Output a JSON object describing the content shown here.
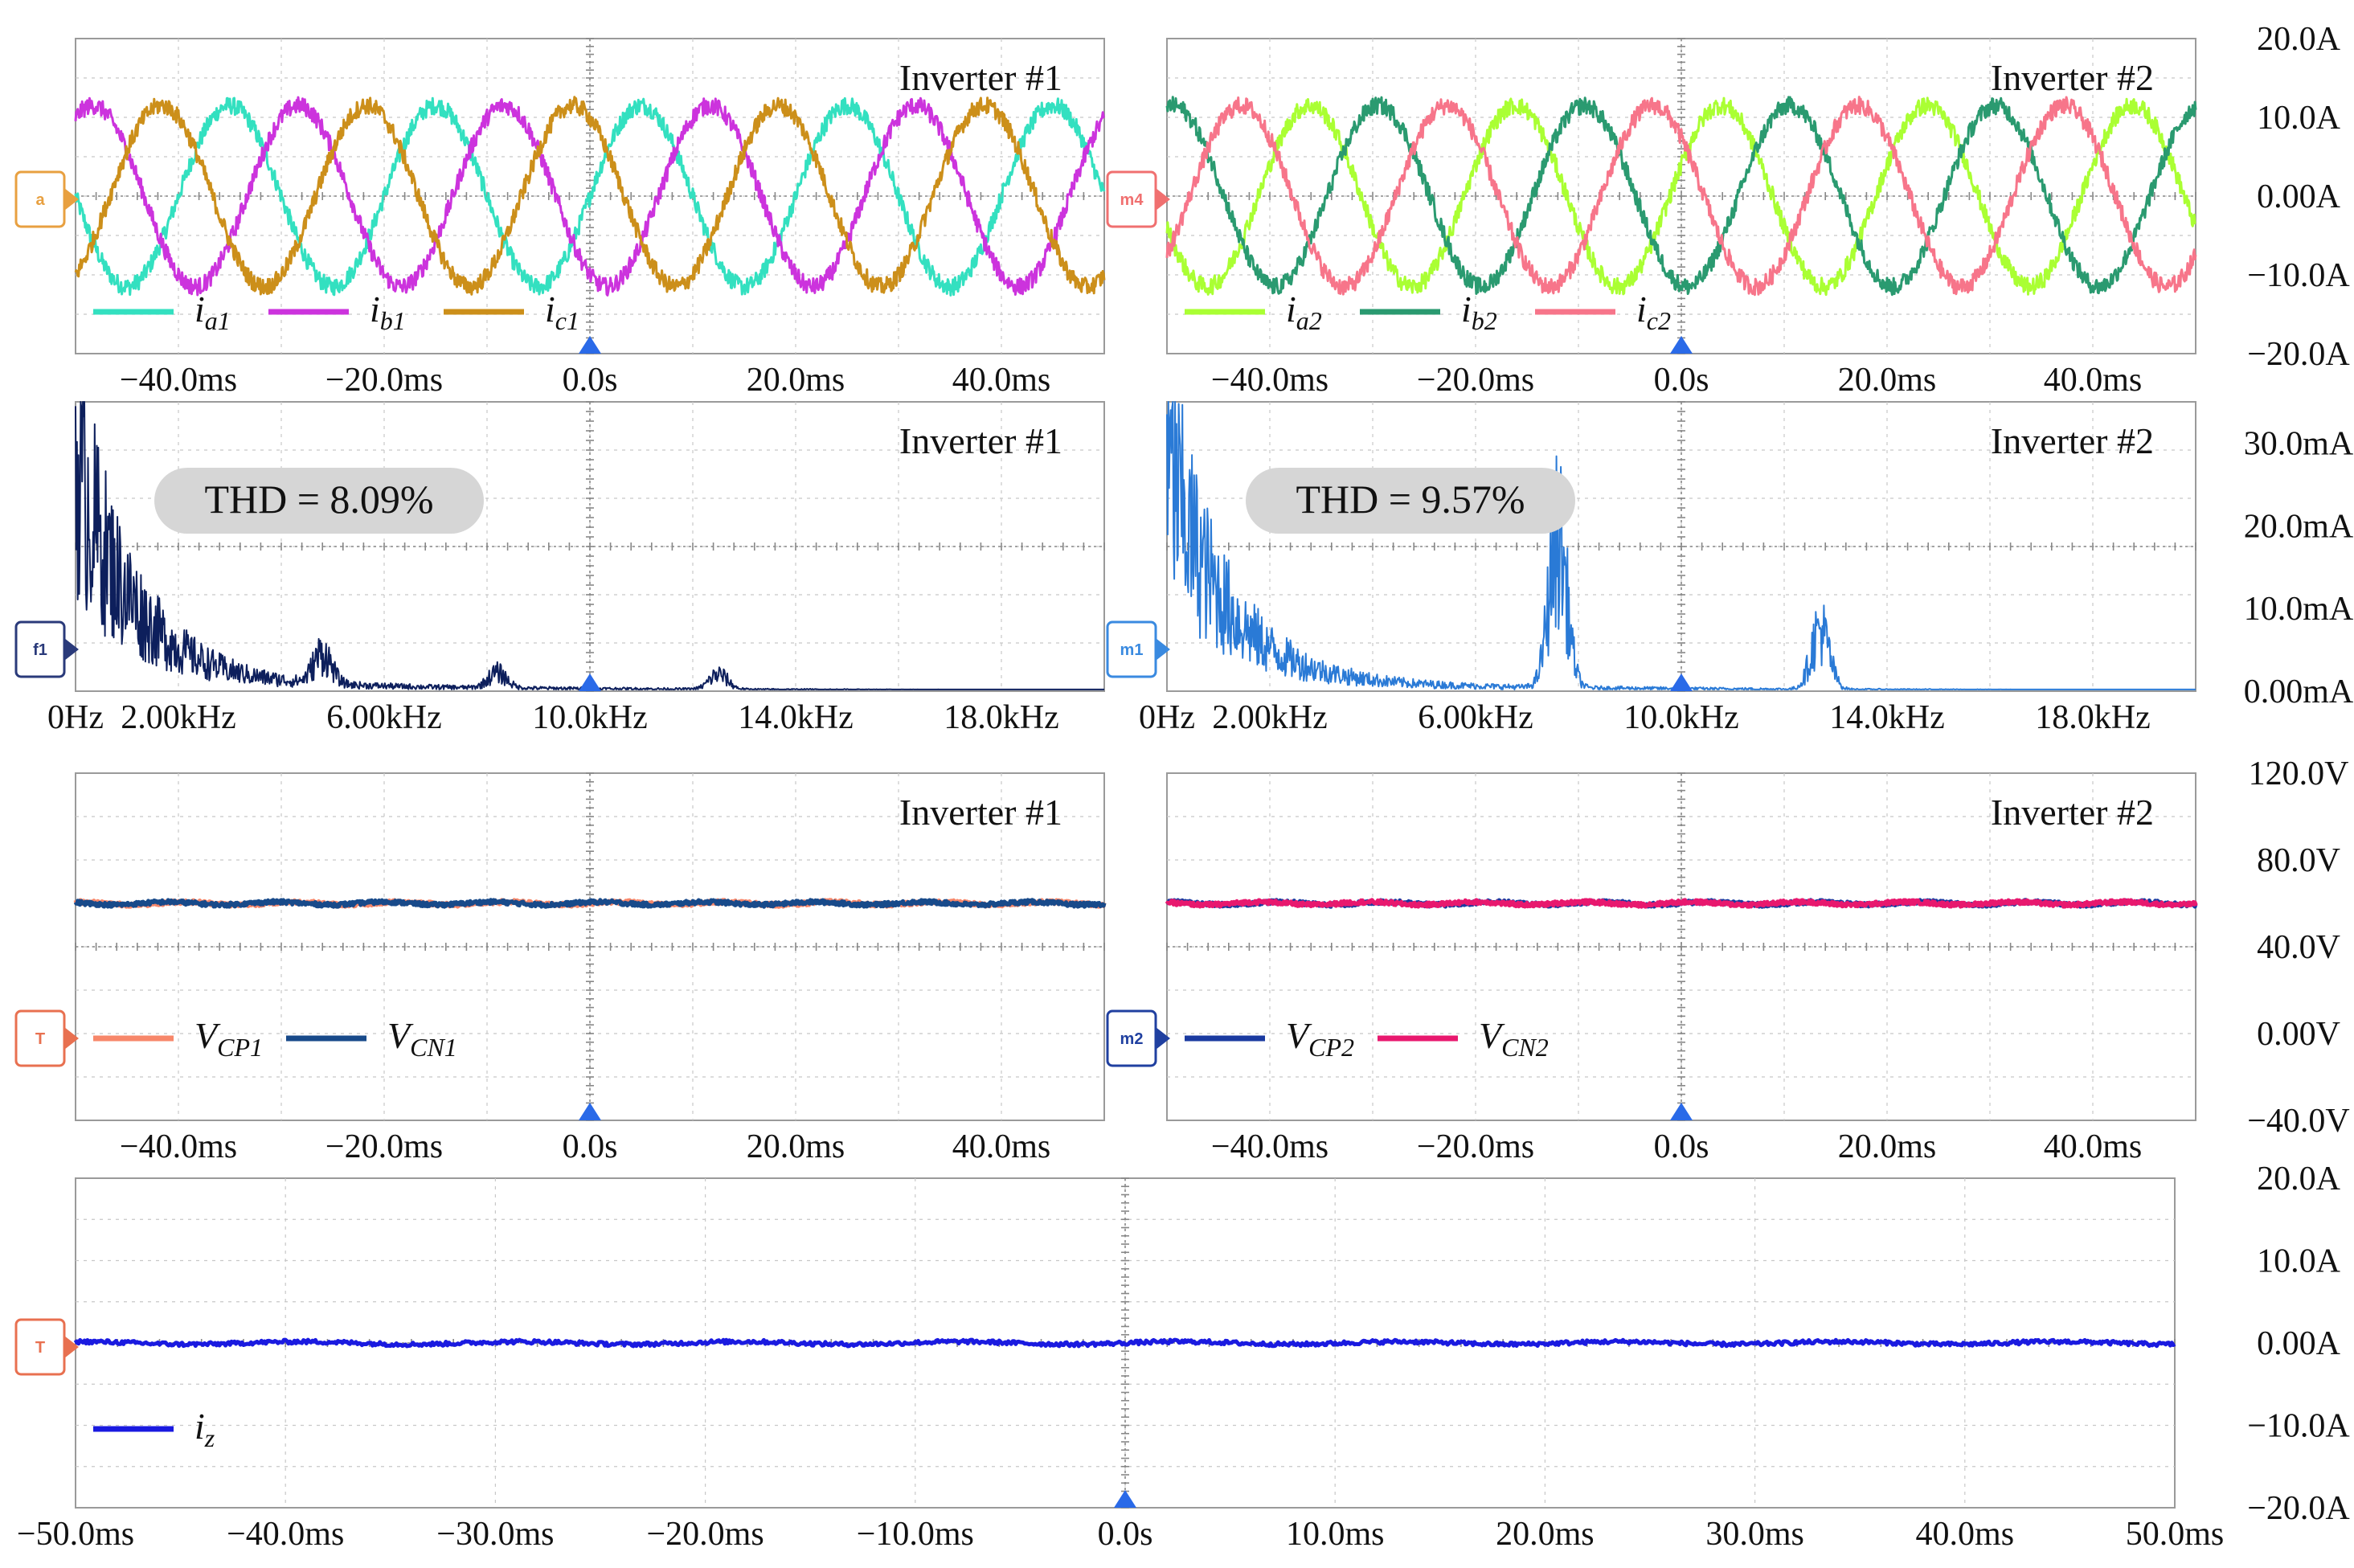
{
  "chart_data": [
    {
      "id": "p1",
      "type": "line",
      "title": "Inverter #1",
      "x_ticks": [
        "−40.0ms",
        "−20.0ms",
        "0.0s",
        "20.0ms",
        "40.0ms"
      ],
      "y_ticks": [],
      "xlim": [
        -50,
        50
      ],
      "ylim": [
        -20,
        20
      ],
      "marker": "a",
      "series": [
        {
          "name": "i",
          "sub": "a1",
          "color": "#33e0c0",
          "amplitude": 11.5,
          "frequency_hz": 50,
          "phase_deg": 0
        },
        {
          "name": "i",
          "sub": "b1",
          "color": "#cc33dd",
          "amplitude": 11.5,
          "frequency_hz": 50,
          "phase_deg": -120
        },
        {
          "name": "i",
          "sub": "c1",
          "color": "#cc8f1a",
          "amplitude": 11.5,
          "frequency_hz": 50,
          "phase_deg": 120
        }
      ]
    },
    {
      "id": "p2",
      "type": "line",
      "title": "Inverter #2",
      "x_ticks": [
        "−40.0ms",
        "−20.0ms",
        "0.0s",
        "20.0ms",
        "40.0ms"
      ],
      "y_ticks": [
        "20.0A",
        "10.0A",
        "0.00A",
        "−10.0A",
        "−20.0A"
      ],
      "xlim": [
        -50,
        50
      ],
      "ylim": [
        -20,
        20
      ],
      "marker": "m4",
      "series": [
        {
          "name": "i",
          "sub": "a2",
          "color": "#aaff33",
          "amplitude": 11.5,
          "frequency_hz": 50,
          "phase_deg": 20
        },
        {
          "name": "i",
          "sub": "b2",
          "color": "#2a9a70",
          "amplitude": 11.5,
          "frequency_hz": 50,
          "phase_deg": -100
        },
        {
          "name": "i",
          "sub": "c2",
          "color": "#f7758a",
          "amplitude": 11.5,
          "frequency_hz": 50,
          "phase_deg": 140
        }
      ]
    },
    {
      "id": "p3",
      "type": "line",
      "title": "Inverter #1",
      "annotation": "THD = 8.09%",
      "x_ticks": [
        "0Hz",
        "2.00kHz",
        "6.00kHz",
        "10.0kHz",
        "14.0kHz",
        "18.0kHz"
      ],
      "y_ticks": [],
      "xlim": [
        0,
        20
      ],
      "ylim": [
        0,
        35
      ],
      "marker": "f1",
      "series": [
        {
          "name": "",
          "color": "#0d1f5c",
          "peaks": [
            {
              "freq_khz": 4.8,
              "value": 4
            },
            {
              "freq_khz": 8.2,
              "value": 2
            },
            {
              "freq_khz": 12.5,
              "value": 2
            }
          ]
        }
      ]
    },
    {
      "id": "p4",
      "type": "line",
      "title": "Inverter #2",
      "annotation": "THD = 9.57%",
      "x_ticks": [
        "0Hz",
        "2.00kHz",
        "6.00kHz",
        "10.0kHz",
        "14.0kHz",
        "18.0kHz"
      ],
      "y_ticks": [
        "30.0mA",
        "20.0mA",
        "10.0mA",
        "0.00mA"
      ],
      "xlim": [
        0,
        20
      ],
      "ylim": [
        0,
        35
      ],
      "marker": "m1",
      "series": [
        {
          "name": "",
          "color": "#2a7ad6",
          "peaks": [
            {
              "freq_khz": 7.6,
              "value": 20
            },
            {
              "freq_khz": 12.7,
              "value": 8
            }
          ]
        }
      ]
    },
    {
      "id": "p5",
      "type": "line",
      "title": "Inverter #1",
      "x_ticks": [
        "−40.0ms",
        "−20.0ms",
        "0.0s",
        "20.0ms",
        "40.0ms"
      ],
      "y_ticks": [],
      "xlim": [
        -50,
        50
      ],
      "ylim": [
        -40,
        120
      ],
      "marker": "T",
      "series": [
        {
          "name": "V",
          "sub": "CP1",
          "color": "#f7876a",
          "level": 60
        },
        {
          "name": "V",
          "sub": "CN1",
          "color": "#184a8a",
          "level": 60
        }
      ]
    },
    {
      "id": "p6",
      "type": "line",
      "title": "Inverter #2",
      "x_ticks": [
        "−40.0ms",
        "−20.0ms",
        "0.0s",
        "20.0ms",
        "40.0ms"
      ],
      "y_ticks": [
        "120.0V",
        "80.0V",
        "40.0V",
        "0.00V",
        "−40.0V"
      ],
      "xlim": [
        -50,
        50
      ],
      "ylim": [
        -40,
        120
      ],
      "marker": "m2",
      "series": [
        {
          "name": "V",
          "sub": "CP2",
          "color": "#1a3aa0",
          "level": 60
        },
        {
          "name": "V",
          "sub": "CN2",
          "color": "#e8186e",
          "level": 60
        }
      ]
    },
    {
      "id": "p7",
      "type": "line",
      "title": "",
      "x_ticks": [
        "−50.0ms",
        "−40.0ms",
        "−30.0ms",
        "−20.0ms",
        "−10.0ms",
        "0.0s",
        "10.0ms",
        "20.0ms",
        "30.0ms",
        "40.0ms",
        "50.0ms"
      ],
      "y_ticks": [
        "20.0A",
        "10.0A",
        "0.00A",
        "−10.0A",
        "−20.0A"
      ],
      "xlim": [
        -50,
        50
      ],
      "ylim": [
        -20,
        20
      ],
      "marker": "T",
      "series": [
        {
          "name": "i",
          "sub": "z",
          "color": "#1a1ae0",
          "level": 0
        }
      ]
    }
  ]
}
